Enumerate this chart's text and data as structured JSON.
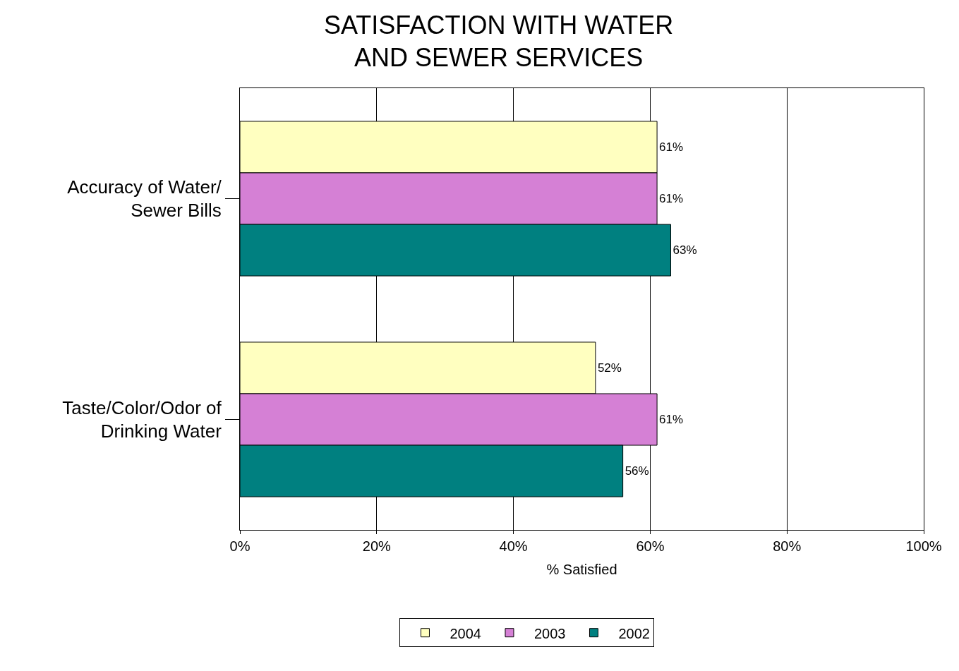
{
  "chart_data": {
    "type": "bar",
    "orientation": "horizontal",
    "title": "SATISFACTION WITH WATER\nAND SEWER SERVICES",
    "xlabel": "% Satisfied",
    "categories": [
      "Accuracy of Water/\nSewer Bills",
      "Taste/Color/Odor of\nDrinking Water"
    ],
    "series": [
      {
        "name": "2004",
        "color": "#ffffc0",
        "values": [
          61,
          52
        ],
        "value_labels": [
          "61%",
          "52%"
        ]
      },
      {
        "name": "2003",
        "color": "#d580d5",
        "values": [
          61,
          61
        ],
        "value_labels": [
          "61%",
          "61%"
        ]
      },
      {
        "name": "2002",
        "color": "#008080",
        "values": [
          63,
          56
        ],
        "value_labels": [
          "63%",
          "56%"
        ]
      }
    ],
    "xlim": [
      0,
      100
    ],
    "xticks": [
      {
        "value": 0,
        "label": "0%"
      },
      {
        "value": 20,
        "label": "20%"
      },
      {
        "value": 40,
        "label": "40%"
      },
      {
        "value": 60,
        "label": "60%"
      },
      {
        "value": 80,
        "label": "80%"
      },
      {
        "value": 100,
        "label": "100%"
      }
    ],
    "grid": "x",
    "legend": "bottom"
  }
}
